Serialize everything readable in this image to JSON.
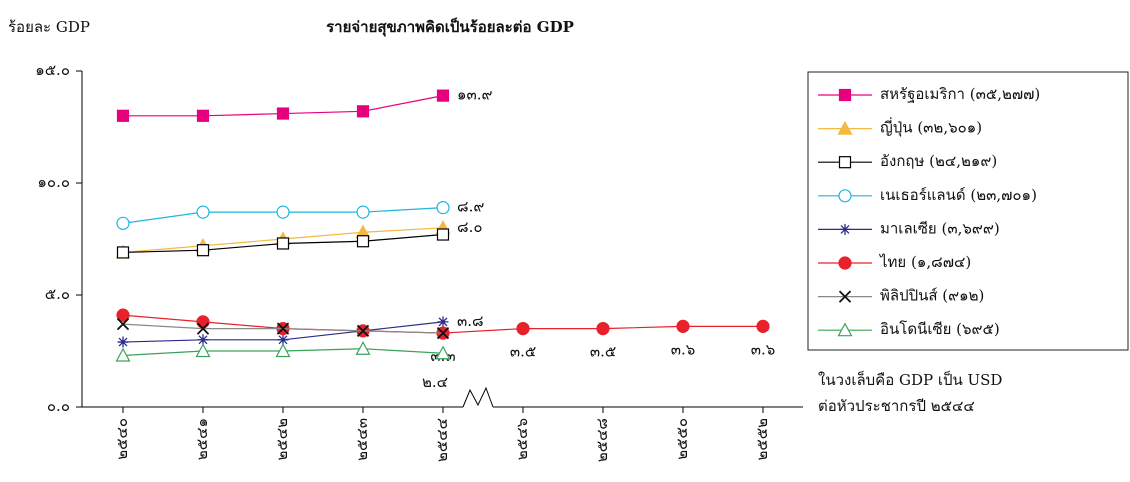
{
  "chart_data": {
    "type": "line",
    "title": "รายจ่ายสุขภาพคิดเป็นร้อยละต่อ GDP",
    "y_label": "ร้อยละ  GDP",
    "annotation": [
      "ในวงเล็บคือ GDP เป็น USD",
      "ต่อหัวประชากรปี ๒๕๔๔"
    ],
    "categories": [
      "๒๕๔๐",
      "๒๕๔๑",
      "๒๕๔๒",
      "๒๕๔๓",
      "๒๕๔๔",
      "๒๕๔๖",
      "๒๕๔๘",
      "๒๕๕๐",
      "๒๕๕๒"
    ],
    "ylim": [
      0,
      15
    ],
    "yticks": [
      {
        "value": 0,
        "label": "๐.๐"
      },
      {
        "value": 5,
        "label": "๕.๐"
      },
      {
        "value": 10,
        "label": "๑๐.๐"
      },
      {
        "value": 15,
        "label": "๑๕.๐"
      }
    ],
    "series": [
      {
        "name": "สหรัฐอเมริกา (๓๕,๒๗๗)",
        "color": "#e6007e",
        "marker": "square-filled",
        "values": [
          13.0,
          13.0,
          13.1,
          13.2,
          13.9,
          null,
          null,
          null,
          null
        ],
        "value_labels": [
          null,
          null,
          null,
          null,
          "๑๓.๙",
          null,
          null,
          null,
          null
        ]
      },
      {
        "name": "ญี่ปุ่น (๓๒,๖๐๑)",
        "color": "#f5b942",
        "marker": "triangle-filled",
        "values": [
          6.9,
          7.2,
          7.5,
          7.8,
          8.0,
          null,
          null,
          null,
          null
        ],
        "value_labels": [
          null,
          null,
          null,
          null,
          "๘.๐",
          null,
          null,
          null,
          null
        ]
      },
      {
        "name": "อังกฤษ (๒๔,๒๑๙)",
        "color": "#000000",
        "marker": "square-open",
        "values": [
          6.9,
          7.0,
          7.3,
          7.4,
          7.7,
          null,
          null,
          null,
          null
        ]
      },
      {
        "name": "เนเธอร์แลนด์ (๒๓,๗๐๑)",
        "color": "#1fb5e0",
        "marker": "circle-open",
        "values": [
          8.2,
          8.7,
          8.7,
          8.7,
          8.9,
          null,
          null,
          null,
          null
        ],
        "value_labels": [
          null,
          null,
          null,
          null,
          "๘.๙",
          null,
          null,
          null,
          null
        ]
      },
      {
        "name": "มาเลเซีย (๓,๖๙๙)",
        "color": "#2b2b8c",
        "marker": "asterisk",
        "values": [
          2.9,
          3.0,
          3.0,
          3.4,
          3.8,
          null,
          null,
          null,
          null
        ],
        "value_labels": [
          null,
          null,
          null,
          null,
          "๓.๘",
          null,
          null,
          null,
          null
        ]
      },
      {
        "name": "ไทย (๑,๘๗๔)",
        "color": "#e8212b",
        "marker": "circle-filled",
        "values": [
          4.1,
          3.8,
          3.5,
          3.4,
          3.3,
          3.5,
          3.5,
          3.6,
          3.6
        ],
        "value_labels": [
          null,
          null,
          null,
          null,
          "๓.๓",
          "๓.๕",
          "๓.๕",
          "๓.๖",
          "๓.๖"
        ]
      },
      {
        "name": "พิลิปปินส์ (๙๑๒)",
        "color": "#888888",
        "marker": "x",
        "values": [
          3.7,
          3.5,
          3.5,
          3.4,
          3.3,
          null,
          null,
          null,
          null
        ]
      },
      {
        "name": "อินโดนีเซีย (๖๙๕)",
        "color": "#3aa35a",
        "marker": "triangle-open",
        "values": [
          2.3,
          2.5,
          2.5,
          2.6,
          2.4,
          null,
          null,
          null,
          null
        ],
        "value_labels": [
          null,
          null,
          null,
          null,
          "๒.๔",
          null,
          null,
          null,
          null
        ]
      }
    ]
  }
}
